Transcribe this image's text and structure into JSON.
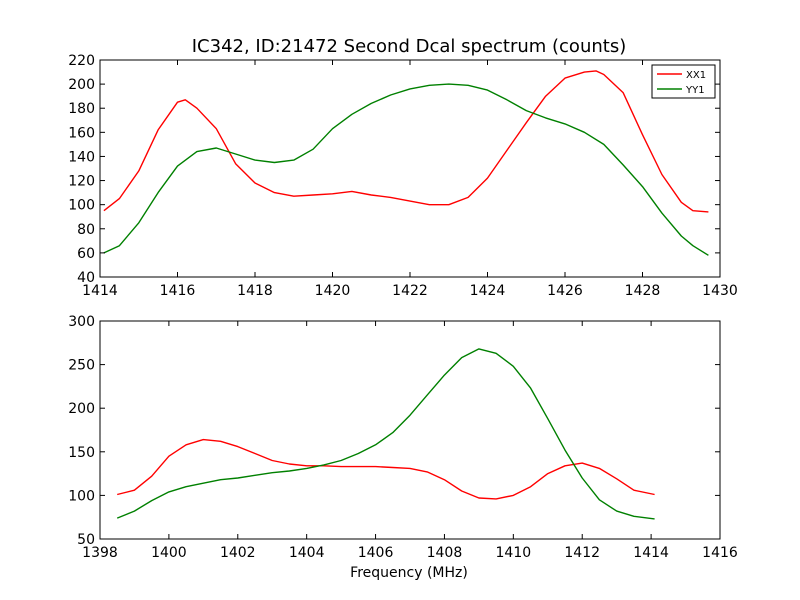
{
  "figure": {
    "title": "IC342, ID:21472 Second Dcal spectrum (counts)",
    "xlabel": "Frequency (MHz)"
  },
  "chart_data": [
    {
      "type": "line",
      "title": "IC342, ID:21472 Second Dcal spectrum (counts)",
      "xlabel": "",
      "ylabel": "",
      "xlim": [
        1414,
        1430
      ],
      "ylim": [
        40,
        220
      ],
      "xticks": [
        1414,
        1416,
        1418,
        1420,
        1422,
        1424,
        1426,
        1428,
        1430
      ],
      "yticks": [
        40,
        60,
        80,
        100,
        120,
        140,
        160,
        180,
        200,
        220
      ],
      "grid": false,
      "legend": {
        "placement": "top-right",
        "entries": [
          "XX1",
          "YY1"
        ]
      },
      "series": [
        {
          "name": "XX1",
          "color": "#ff0000",
          "x": [
            1414.1,
            1414.5,
            1415.0,
            1415.5,
            1416.0,
            1416.2,
            1416.5,
            1417.0,
            1417.5,
            1418.0,
            1418.5,
            1419.0,
            1419.5,
            1420.0,
            1420.5,
            1421.0,
            1421.5,
            1422.0,
            1422.5,
            1423.0,
            1423.5,
            1424.0,
            1424.5,
            1425.0,
            1425.5,
            1426.0,
            1426.5,
            1426.8,
            1427.0,
            1427.5,
            1428.0,
            1428.5,
            1429.0,
            1429.3,
            1429.7
          ],
          "y": [
            95,
            105,
            128,
            162,
            185,
            187,
            180,
            163,
            134,
            118,
            110,
            107,
            108,
            109,
            111,
            108,
            106,
            103,
            100,
            100,
            106,
            122,
            145,
            168,
            190,
            205,
            210,
            211,
            208,
            193,
            158,
            125,
            102,
            95,
            94
          ]
        },
        {
          "name": "YY1",
          "color": "#008000",
          "x": [
            1414.1,
            1414.5,
            1415.0,
            1415.5,
            1416.0,
            1416.5,
            1417.0,
            1417.5,
            1418.0,
            1418.5,
            1419.0,
            1419.5,
            1420.0,
            1420.5,
            1421.0,
            1421.5,
            1422.0,
            1422.5,
            1423.0,
            1423.5,
            1424.0,
            1424.5,
            1425.0,
            1425.5,
            1426.0,
            1426.5,
            1427.0,
            1427.5,
            1428.0,
            1428.5,
            1429.0,
            1429.3,
            1429.7
          ],
          "y": [
            60,
            66,
            85,
            110,
            132,
            144,
            147,
            142,
            137,
            135,
            137,
            146,
            163,
            175,
            184,
            191,
            196,
            199,
            200,
            199,
            195,
            187,
            178,
            172,
            167,
            160,
            150,
            133,
            115,
            93,
            74,
            66,
            58
          ]
        }
      ]
    },
    {
      "type": "line",
      "title": "",
      "xlabel": "Frequency (MHz)",
      "ylabel": "",
      "xlim": [
        1398,
        1416
      ],
      "ylim": [
        50,
        300
      ],
      "xticks": [
        1398,
        1400,
        1402,
        1404,
        1406,
        1408,
        1410,
        1412,
        1414,
        1416
      ],
      "yticks": [
        50,
        100,
        150,
        200,
        250,
        300
      ],
      "grid": false,
      "series": [
        {
          "color": "#ff0000",
          "x": [
            1398.5,
            1399.0,
            1399.5,
            1400.0,
            1400.5,
            1401.0,
            1401.5,
            1402.0,
            1402.5,
            1403.0,
            1403.5,
            1404.0,
            1404.5,
            1405.0,
            1405.5,
            1406.0,
            1406.5,
            1407.0,
            1407.5,
            1408.0,
            1408.5,
            1409.0,
            1409.5,
            1410.0,
            1410.5,
            1411.0,
            1411.5,
            1412.0,
            1412.5,
            1413.0,
            1413.5,
            1414.1
          ],
          "y": [
            101,
            106,
            122,
            145,
            158,
            164,
            162,
            156,
            148,
            140,
            136,
            134,
            134,
            133,
            133,
            133,
            132,
            131,
            127,
            118,
            105,
            97,
            96,
            100,
            110,
            125,
            134,
            137,
            131,
            119,
            106,
            101
          ]
        },
        {
          "color": "#008000",
          "x": [
            1398.5,
            1399.0,
            1399.5,
            1400.0,
            1400.5,
            1401.0,
            1401.5,
            1402.0,
            1402.5,
            1403.0,
            1403.5,
            1404.0,
            1404.5,
            1405.0,
            1405.5,
            1406.0,
            1406.5,
            1407.0,
            1407.5,
            1408.0,
            1408.5,
            1409.0,
            1409.5,
            1410.0,
            1410.5,
            1411.0,
            1411.5,
            1412.0,
            1412.5,
            1413.0,
            1413.5,
            1414.1
          ],
          "y": [
            74,
            82,
            94,
            104,
            110,
            114,
            118,
            120,
            123,
            126,
            128,
            131,
            135,
            140,
            148,
            158,
            172,
            192,
            215,
            238,
            258,
            268,
            263,
            248,
            223,
            188,
            152,
            120,
            95,
            82,
            76,
            73
          ]
        }
      ]
    }
  ]
}
